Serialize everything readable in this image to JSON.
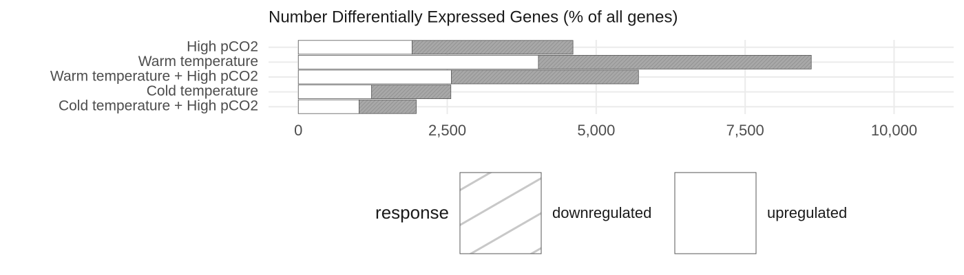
{
  "chart_data": {
    "type": "stacked_bar_horizontal",
    "title": "Number Differentially Expressed Genes (% of all genes)",
    "categories": [
      "High pCO2",
      "Warm temperature",
      "Warm temperature + High pCO2",
      "Cold temperature",
      "Cold temperature + High pCO2"
    ],
    "series": [
      {
        "name": "upregulated",
        "color": "#ffffff",
        "values": [
          1910,
          4030,
          2570,
          1230,
          1020
        ]
      },
      {
        "name": "downregulated",
        "color": "#a8a8a8",
        "hatch": true,
        "values": [
          2700,
          4580,
          3140,
          1330,
          960
        ]
      }
    ],
    "legend_title": "response",
    "legend_order": [
      1,
      0
    ],
    "xlim": [
      -500,
      11000
    ],
    "xticks": [
      0,
      {
        "value": 2500,
        "label": "2,500"
      },
      {
        "value": 5000,
        "label": "5,000"
      },
      {
        "value": 7500,
        "label": "7,500"
      },
      {
        "value": 10000,
        "label": "10,000"
      }
    ],
    "grid": true,
    "legend_position": "bottom"
  }
}
